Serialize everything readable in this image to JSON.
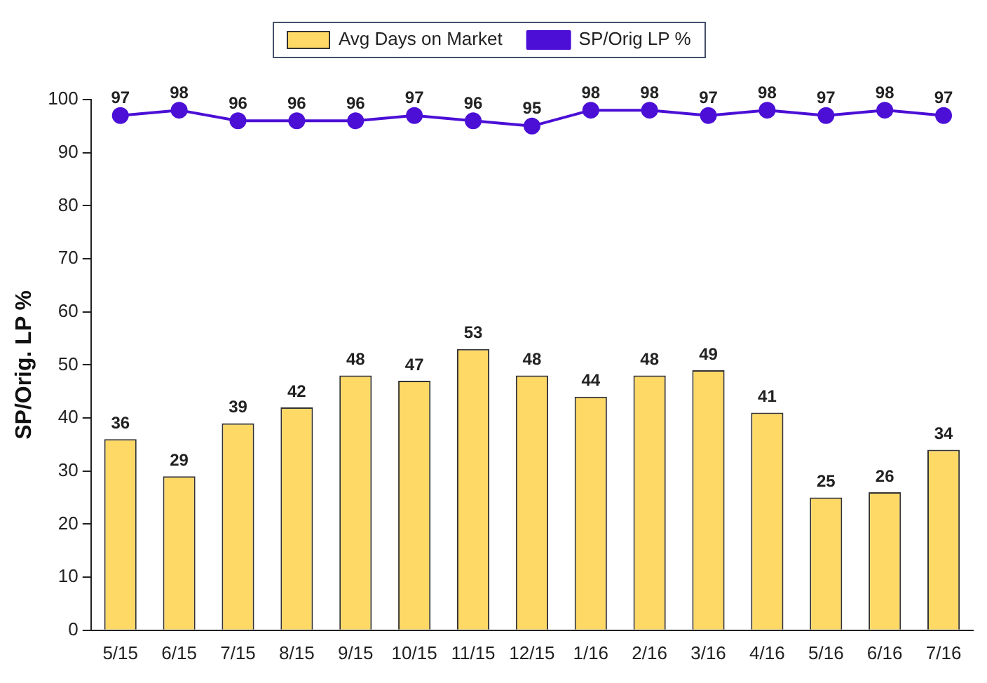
{
  "chart_data": {
    "type": "bar",
    "ylabel": "SP/Orig. LP %",
    "categories": [
      "5/15",
      "6/15",
      "7/15",
      "8/15",
      "9/15",
      "10/15",
      "11/15",
      "12/15",
      "1/16",
      "2/16",
      "3/16",
      "4/16",
      "5/16",
      "6/16",
      "7/16"
    ],
    "series": [
      {
        "name": "Avg Days on Market",
        "color": "#ffd966",
        "values": [
          36,
          29,
          39,
          42,
          48,
          47,
          53,
          48,
          44,
          48,
          49,
          41,
          25,
          26,
          34
        ]
      },
      {
        "name": "SP/Orig LP %",
        "type": "line",
        "color": "#4b0fd6",
        "values": [
          97,
          98,
          96,
          96,
          96,
          97,
          96,
          95,
          98,
          98,
          97,
          98,
          97,
          98,
          97
        ]
      }
    ],
    "ylim": [
      0,
      100
    ],
    "yticks": [
      0,
      10,
      20,
      30,
      40,
      50,
      60,
      70,
      80,
      90,
      100
    ],
    "grid": false,
    "legend": "top",
    "marker": "circle",
    "line_style": "solid",
    "data_labels": true
  }
}
